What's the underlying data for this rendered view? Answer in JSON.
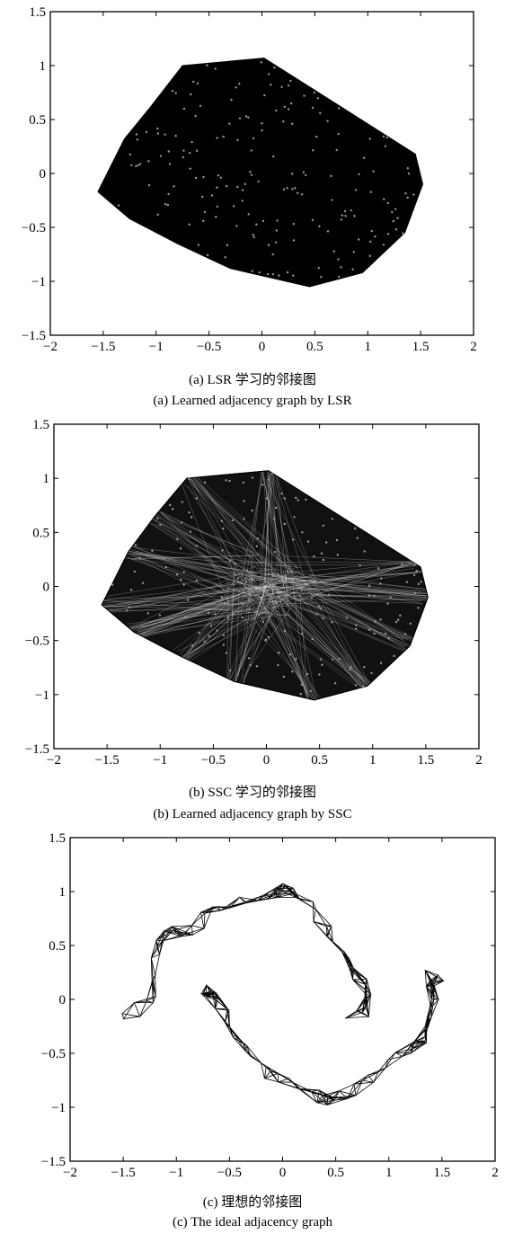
{
  "chart_data": [
    {
      "type": "network",
      "title": "",
      "xlim": [
        -2,
        2
      ],
      "ylim": [
        -1.5,
        1.5
      ],
      "xticks": [
        "−2",
        "−1.5",
        "−1",
        "−0.5",
        "0",
        "0.5",
        "1",
        "1.5",
        "2"
      ],
      "yticks": [
        "1.5",
        "1",
        "0.5",
        "0",
        "−0.5",
        "−1",
        "−1.5"
      ],
      "grid": false,
      "legend": "none",
      "edge_style": "dense",
      "caption_cn": "(a) LSR 学习的邻接图",
      "caption_en": "(a) Learned adjacency graph by LSR",
      "hull": [
        [
          -1.55,
          -0.17
        ],
        [
          -1.3,
          0.32
        ],
        [
          -1.05,
          0.62
        ],
        [
          -0.75,
          1.0
        ],
        [
          0.02,
          1.07
        ],
        [
          1.45,
          0.18
        ],
        [
          1.52,
          -0.1
        ],
        [
          1.35,
          -0.55
        ],
        [
          0.95,
          -0.92
        ],
        [
          0.45,
          -1.05
        ],
        [
          -0.3,
          -0.88
        ],
        [
          -0.8,
          -0.65
        ],
        [
          -1.25,
          -0.42
        ]
      ]
    },
    {
      "type": "network",
      "title": "",
      "xlim": [
        -2,
        2
      ],
      "ylim": [
        -1.5,
        1.5
      ],
      "xticks": [
        "−2",
        "−1.5",
        "−1",
        "−0.5",
        "0",
        "0.5",
        "1",
        "1.5",
        "2"
      ],
      "yticks": [
        "1.5",
        "1",
        "0.5",
        "0",
        "−0.5",
        "−1",
        "−1.5"
      ],
      "grid": false,
      "legend": "none",
      "edge_style": "star",
      "caption_cn": "(b) SSC 学习的邻接图",
      "caption_en": "(b) Learned adjacency graph by SSC",
      "hull": [
        [
          -1.55,
          -0.17
        ],
        [
          -1.3,
          0.32
        ],
        [
          -1.05,
          0.65
        ],
        [
          -0.75,
          1.0
        ],
        [
          0.02,
          1.07
        ],
        [
          1.45,
          0.18
        ],
        [
          1.52,
          -0.1
        ],
        [
          1.35,
          -0.55
        ],
        [
          0.95,
          -0.92
        ],
        [
          0.45,
          -1.05
        ],
        [
          -0.3,
          -0.88
        ],
        [
          -0.8,
          -0.65
        ],
        [
          -1.25,
          -0.42
        ]
      ]
    },
    {
      "type": "network",
      "title": "",
      "xlim": [
        -2,
        2
      ],
      "ylim": [
        -1.5,
        1.5
      ],
      "xticks": [
        "−2",
        "−1.5",
        "−1",
        "−0.5",
        "0",
        "0.5",
        "1",
        "1.5",
        "2"
      ],
      "yticks": [
        "1.5",
        "1",
        "0.5",
        "0",
        "−0.5",
        "−1",
        "−1.5"
      ],
      "grid": false,
      "legend": "none",
      "edge_style": "spiral",
      "caption_cn": "(c) 理想的邻接图",
      "caption_en": "(c) The ideal adjacency graph",
      "spiral_outer": [
        [
          -1.5,
          -0.15
        ],
        [
          -1.3,
          -0.05
        ],
        [
          -1.2,
          0.2
        ],
        [
          -1.2,
          0.45
        ],
        [
          -1.05,
          0.62
        ],
        [
          -0.85,
          0.58
        ],
        [
          -0.75,
          0.82
        ],
        [
          -0.55,
          0.9
        ],
        [
          -0.3,
          0.88
        ],
        [
          -0.1,
          0.95
        ],
        [
          0.05,
          1.05
        ],
        [
          0.2,
          0.92
        ],
        [
          0.4,
          0.72
        ],
        [
          0.5,
          0.55
        ],
        [
          0.6,
          0.35
        ],
        [
          0.75,
          0.2
        ],
        [
          0.85,
          0.05
        ],
        [
          0.8,
          -0.1
        ],
        [
          0.6,
          -0.2
        ]
      ],
      "spiral_inner": [
        [
          -0.75,
          0.1
        ],
        [
          -0.7,
          0.05
        ],
        [
          -0.65,
          0.0
        ],
        [
          -0.55,
          -0.15
        ],
        [
          -0.45,
          -0.35
        ],
        [
          -0.3,
          -0.5
        ],
        [
          -0.15,
          -0.68
        ],
        [
          0.05,
          -0.75
        ],
        [
          0.25,
          -0.8
        ],
        [
          0.4,
          -0.95
        ],
        [
          0.55,
          -0.88
        ],
        [
          0.75,
          -0.8
        ],
        [
          0.95,
          -0.62
        ],
        [
          1.15,
          -0.48
        ],
        [
          1.3,
          -0.4
        ],
        [
          1.35,
          -0.25
        ],
        [
          1.42,
          -0.1
        ],
        [
          1.4,
          0.1
        ],
        [
          1.4,
          0.22
        ],
        [
          1.48,
          0.1
        ]
      ]
    }
  ]
}
